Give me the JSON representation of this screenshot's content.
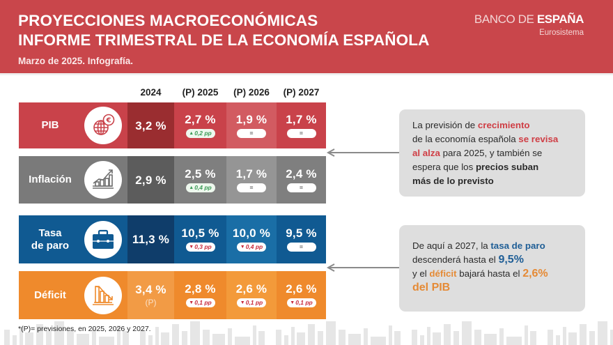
{
  "header": {
    "title_line1": "PROYECCIONES MACROECONÓMICAS",
    "title_line2": "INFORME TRIMESTRAL DE LA ECONOMÍA ESPAÑOLA",
    "subtitle": "Marzo de 2025. Infografía.",
    "logo_part1": "BANCO DE ",
    "logo_part2": "ESPAÑA",
    "logo_sub": "Eurosistema"
  },
  "table": {
    "columns": [
      "2024",
      "(P) 2025",
      "(P) 2026",
      "(P) 2027"
    ],
    "rows": [
      {
        "label": "PIB",
        "icon": "globe-euro-icon",
        "values": [
          "3,2 %",
          "2,7 %",
          "1,9 %",
          "1,7 %"
        ],
        "badges": [
          null,
          {
            "type": "up",
            "arrow": "▲",
            "text": "0,2 pp"
          },
          {
            "type": "eq",
            "text": "="
          },
          {
            "type": "eq",
            "text": "="
          }
        ],
        "colors": {
          "label": "#c9424a",
          "c2024": "#9a2d30",
          "c2025": "#c9424a",
          "c2026": "#d25b61",
          "c2027": "#c9424a"
        }
      },
      {
        "label": "Inflación",
        "icon": "growth-chart-icon",
        "values": [
          "2,9 %",
          "2,5 %",
          "1,7 %",
          "2,4 %"
        ],
        "badges": [
          null,
          {
            "type": "up",
            "arrow": "▲",
            "text": "0,4 pp"
          },
          {
            "type": "eq",
            "text": "="
          },
          {
            "type": "eq",
            "text": "="
          }
        ],
        "colors": {
          "label": "#7a7a7a",
          "c2024": "#5c5c5c",
          "c2025": "#7f7f7f",
          "c2026": "#959595",
          "c2027": "#7f7f7f"
        }
      },
      {
        "label_line1": "Tasa",
        "label_line2": "de paro",
        "icon": "briefcase-icon",
        "values": [
          "11,3 %",
          "10,5 %",
          "10,0 %",
          "9,5 %"
        ],
        "badges": [
          null,
          {
            "type": "down",
            "arrow": "▼",
            "text": "0,3 pp"
          },
          {
            "type": "down",
            "arrow": "▼",
            "text": "0,4 pp"
          },
          {
            "type": "eq",
            "text": "="
          }
        ],
        "colors": {
          "label": "#105a92",
          "c2024": "#0f3d6a",
          "c2025": "#105a92",
          "c2026": "#1a6ea6",
          "c2027": "#105a92"
        }
      },
      {
        "label": "Déficit",
        "icon": "declining-chart-icon",
        "values": [
          "3,4 %",
          "2,8 %",
          "2,6 %",
          "2,6 %"
        ],
        "sub_2024": "(P)",
        "badges": [
          null,
          {
            "type": "down",
            "arrow": "▼",
            "text": "0,1 pp"
          },
          {
            "type": "down",
            "arrow": "▼",
            "text": "0,1 pp"
          },
          {
            "type": "down",
            "arrow": "▼",
            "text": "0,1 pp"
          }
        ],
        "colors": {
          "label": "#ef8a2c",
          "c2024": "#f29b45",
          "c2025": "#ef8a2c",
          "c2026": "#f39a3a",
          "c2027": "#ef8a2c"
        }
      }
    ]
  },
  "callouts": [
    {
      "parts": [
        {
          "t": "La previsión de ",
          "s": ""
        },
        {
          "t": "crecimiento",
          "s": "hl-red"
        },
        {
          "t": "\n",
          "s": "br"
        },
        {
          "t": "de la economía española ",
          "s": ""
        },
        {
          "t": "se revisa",
          "s": "hl-red"
        },
        {
          "t": "\n",
          "s": "br"
        },
        {
          "t": "al alza",
          "s": "hl-red"
        },
        {
          "t": " para 2025, y también se",
          "s": ""
        },
        {
          "t": "\n",
          "s": "br"
        },
        {
          "t": "espera que los ",
          "s": ""
        },
        {
          "t": "precios suban",
          "s": "bold-dark"
        },
        {
          "t": "\n",
          "s": "br"
        },
        {
          "t": "más de lo previsto",
          "s": "bold-dark"
        }
      ]
    },
    {
      "parts": [
        {
          "t": "De aquí a 2027, la ",
          "s": ""
        },
        {
          "t": "tasa de paro",
          "s": "hl-blue"
        },
        {
          "t": "\n",
          "s": "br"
        },
        {
          "t": "descenderá hasta el ",
          "s": ""
        },
        {
          "t": "9,5%",
          "s": "hl-blue-big"
        },
        {
          "t": "\n",
          "s": "br"
        },
        {
          "t": "y el ",
          "s": ""
        },
        {
          "t": "déficit",
          "s": "hl-orange"
        },
        {
          "t": " bajará hasta el ",
          "s": ""
        },
        {
          "t": "2,6%",
          "s": "hl-orange-big"
        },
        {
          "t": "\n",
          "s": "br"
        },
        {
          "t": "del PIB",
          "s": "hl-orange-big"
        }
      ]
    }
  ],
  "footnote": "*(P)= previsiones, en 2025, 2026 y 2027.",
  "colors": {
    "header_bg": "#c9464b",
    "arrow": "#8a8a8a",
    "callout_bg": "#dedede"
  }
}
